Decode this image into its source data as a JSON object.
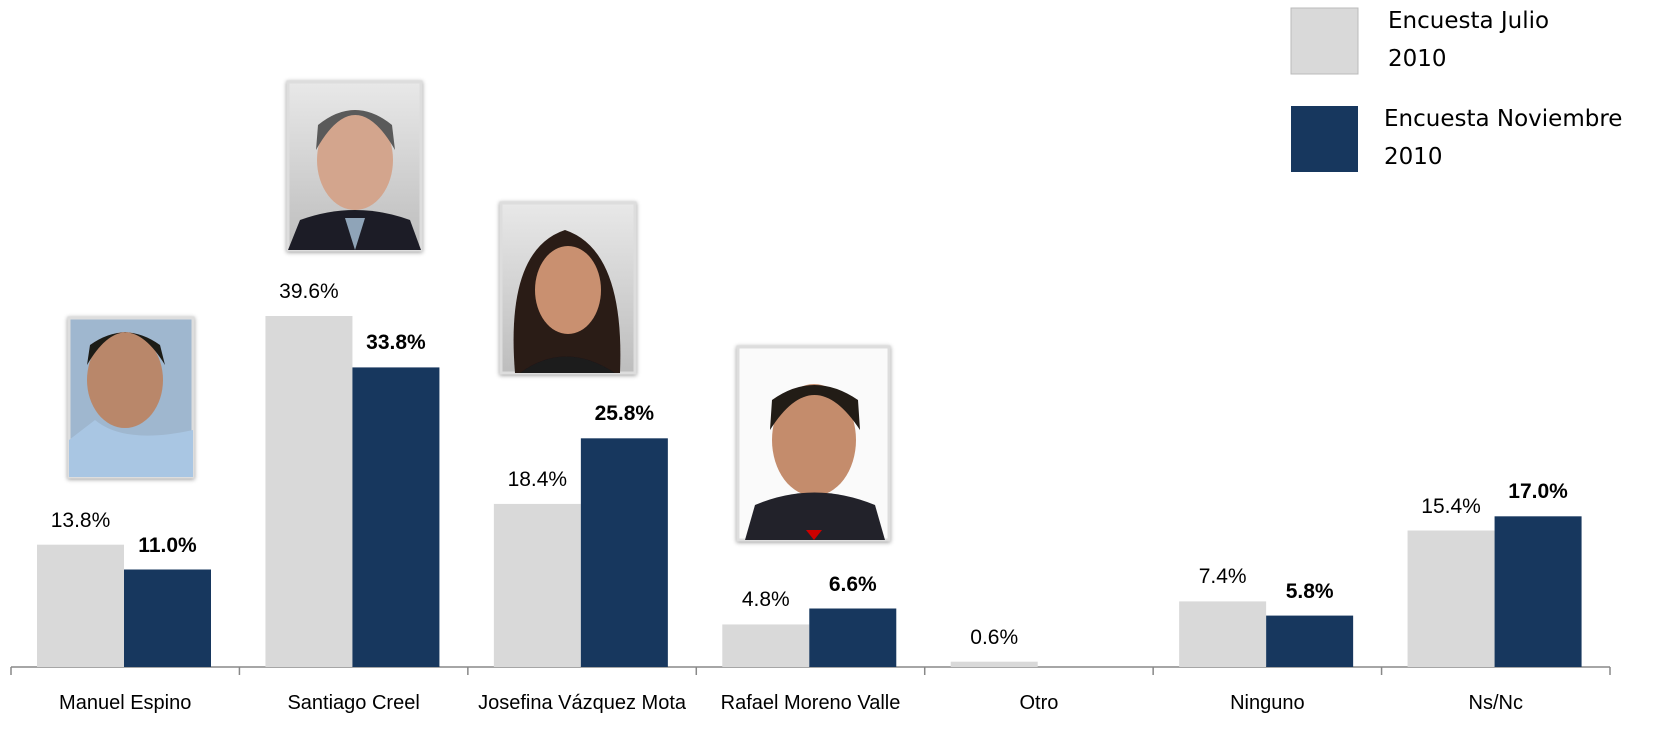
{
  "chart_data": {
    "type": "bar",
    "categories": [
      "Manuel Espino",
      "Santiago Creel",
      "Josefina Vázquez Mota",
      "Rafael Moreno Valle",
      "Otro",
      "Ninguno",
      "Ns/Nc"
    ],
    "series": [
      {
        "name": "Encuesta Julio 2010",
        "color": "#d9d9d9",
        "values": [
          13.8,
          39.6,
          18.4,
          4.8,
          0.6,
          7.4,
          15.4
        ],
        "value_labels": [
          "13.8%",
          "39.6%",
          "18.4%",
          "4.8%",
          "0.6%",
          "7.4%",
          "15.4%"
        ]
      },
      {
        "name": "Encuesta Noviembre 2010",
        "color": "#17375e",
        "values": [
          11.0,
          33.8,
          25.8,
          6.6,
          null,
          5.8,
          17.0
        ],
        "value_labels": [
          "11.0%",
          "33.8%",
          "25.8%",
          "6.6%",
          null,
          "5.8%",
          "17.0%"
        ]
      }
    ],
    "legend": "top-right"
  }
}
